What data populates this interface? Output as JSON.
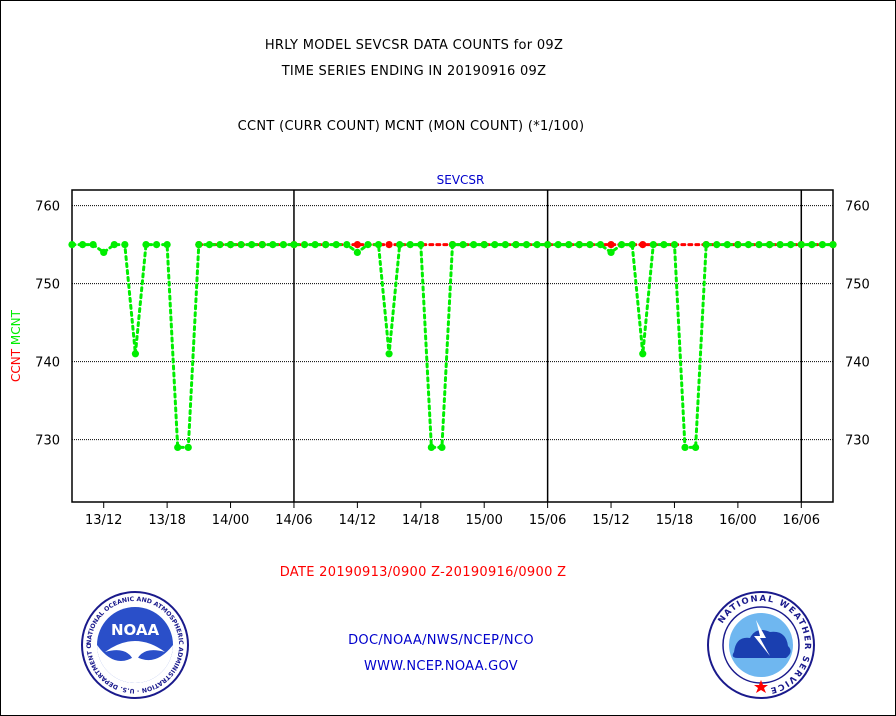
{
  "header": {
    "title_line1": "HRLY MODEL SEVCSR DATA COUNTS for 09Z",
    "title_line2": "TIME SERIES ENDING IN 20190916 09Z",
    "subtitle": "CCNT (CURR COUNT) MCNT (MON COUNT) (*1/100)"
  },
  "footer": {
    "date_range": "DATE 20190913/0900 Z-20190916/0900 Z",
    "org": "DOC/NOAA/NWS/NCEP/NCO",
    "url": "WWW.NCEP.NOAA.GOV"
  },
  "logos": {
    "noaa_text": "NOAA",
    "noaa_ring_text": "NATIONAL OCEANIC AND ATMOSPHERIC ADMINISTRATION · U.S. DEPARTMENT OF COMMERCE ·",
    "nws_ring_text": "NATIONAL WEATHER SERVICE"
  },
  "colors": {
    "ccnt": "#ff0000",
    "mcnt": "#00ee00",
    "title_blue": "#0000cc",
    "date_red": "#ff0000"
  },
  "chart_data": {
    "type": "line",
    "title": "SEVCSR",
    "ylabel_ccnt": "CCNT",
    "ylabel_mcnt": "MCNT",
    "ylim": [
      722,
      762
    ],
    "yticks": [
      730,
      740,
      750,
      760
    ],
    "x_range": [
      "2019-09-13 09:00",
      "2019-09-16 09:00"
    ],
    "xtick_labels": [
      "13/12",
      "13/18",
      "14/00",
      "14/06",
      "14/12",
      "14/18",
      "15/00",
      "15/06",
      "15/12",
      "15/18",
      "16/00",
      "16/06"
    ],
    "day_separators": [
      "14/06",
      "15/06",
      "16/06"
    ],
    "grid": true,
    "series": [
      {
        "name": "CCNT",
        "x_hours": [
          12,
          15,
          18,
          21,
          24,
          27,
          30,
          36,
          39,
          42,
          45,
          48,
          51,
          54,
          60,
          63,
          66,
          69,
          72
        ],
        "values": [
          755,
          755,
          755,
          755,
          755,
          755,
          755,
          755,
          755,
          755,
          755,
          755,
          755,
          755,
          755,
          755,
          755,
          755,
          755
        ]
      },
      {
        "name": "MCNT",
        "x_hours": [
          0,
          1,
          2,
          3,
          4,
          5,
          6,
          7,
          8,
          9,
          10,
          11,
          12,
          13,
          14,
          15,
          16,
          17,
          18,
          19,
          20,
          21,
          22,
          23,
          24,
          25,
          26,
          27,
          28,
          29,
          30,
          31,
          32,
          33,
          34,
          35,
          36,
          37,
          38,
          39,
          40,
          41,
          42,
          43,
          44,
          45,
          46,
          47,
          48,
          49,
          50,
          51,
          52,
          53,
          54,
          55,
          56,
          57,
          58,
          59,
          60,
          61,
          62,
          63,
          64,
          65,
          66,
          67,
          68,
          69,
          70,
          71,
          72
        ],
        "values": [
          755,
          755,
          755,
          754,
          755,
          755,
          741,
          755,
          755,
          755,
          729,
          729,
          755,
          755,
          755,
          755,
          755,
          755,
          755,
          755,
          755,
          755,
          755,
          755,
          755,
          755,
          755,
          754,
          755,
          755,
          741,
          755,
          755,
          755,
          729,
          729,
          755,
          755,
          755,
          755,
          755,
          755,
          755,
          755,
          755,
          755,
          755,
          755,
          755,
          755,
          755,
          754,
          755,
          755,
          741,
          755,
          755,
          755,
          729,
          729,
          755,
          755,
          755,
          755,
          755,
          755,
          755,
          755,
          755,
          755,
          755,
          755,
          755
        ]
      }
    ]
  }
}
